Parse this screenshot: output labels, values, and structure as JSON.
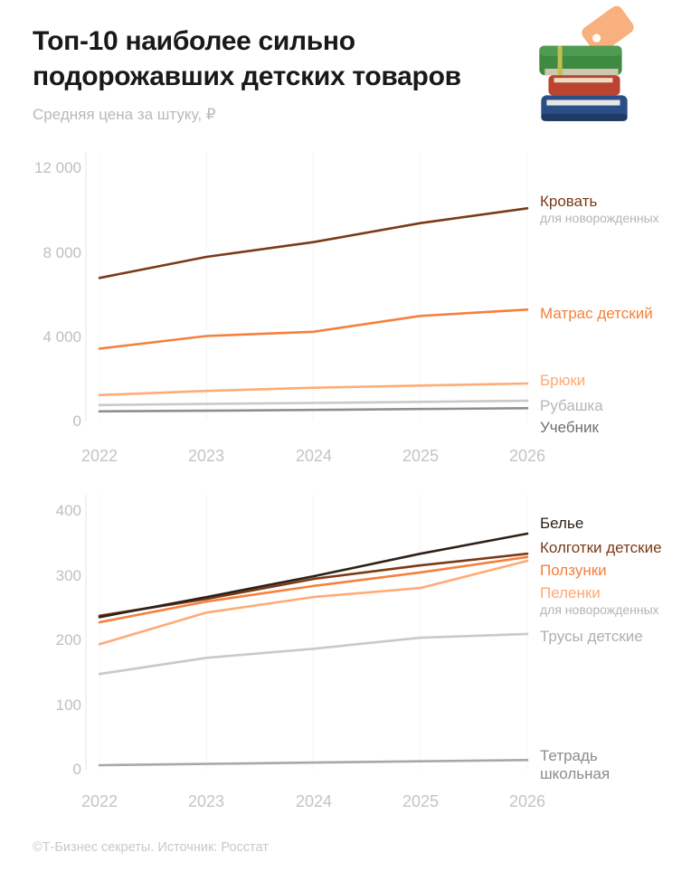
{
  "header": {
    "title_line1": "Топ-10 наиболее сильно",
    "title_line2": "подорожавших детских товаров",
    "subtitle": "Средняя цена за штуку, ₽",
    "illustration": "books-with-price-tag"
  },
  "footer": {
    "credit": "©Т-Бизнес секреты. Источник: Росстат"
  },
  "colors": {
    "title_text": "#191919",
    "axis_text": "#BFBFBF",
    "muted_text": "#B5B5B5",
    "footer_text": "#C9C9C9",
    "axis_line": "#E6E6E6",
    "grid_line": "#F4F4F4"
  },
  "chart_data": [
    {
      "type": "line",
      "title": "Средняя цена за штуку, ₽",
      "categories": [
        "2022",
        "2023",
        "2024",
        "2025",
        "2026"
      ],
      "xlabel": "",
      "ylabel": "",
      "ylim": [
        0,
        12000
      ],
      "grid": "vertical",
      "legend_position": "right",
      "y_ticks": [
        {
          "value": 12000,
          "label": "12 000"
        },
        {
          "value": 8000,
          "label": "8 000"
        },
        {
          "value": 4000,
          "label": "4 000"
        },
        {
          "value": 0,
          "label": "0"
        }
      ],
      "series": [
        {
          "name": "Кровать",
          "sublabel": "для новорожденных",
          "color": "#7B3A17",
          "label_color": "#7B3A17",
          "values": [
            6800,
            7800,
            8500,
            9400,
            10100
          ]
        },
        {
          "name": "Матрас детский",
          "color": "#F5803C",
          "label_color": "#F5803C",
          "values": [
            3450,
            4050,
            4250,
            5000,
            5300
          ]
        },
        {
          "name": "Брюки",
          "color": "#FFAB76",
          "label_color": "#FFA873",
          "values": [
            1250,
            1450,
            1600,
            1700,
            1800
          ]
        },
        {
          "name": "Рубашка",
          "color": "#C9C9C9",
          "label_color": "#B6B6B6",
          "values": [
            780,
            830,
            880,
            930,
            980
          ]
        },
        {
          "name": "Учебник",
          "color": "#8E8E8E",
          "label_color": "#6F6F6F",
          "values": [
            480,
            510,
            550,
            590,
            630
          ]
        }
      ]
    },
    {
      "type": "line",
      "title": "",
      "categories": [
        "2022",
        "2023",
        "2024",
        "2025",
        "2026"
      ],
      "xlabel": "",
      "ylabel": "",
      "ylim": [
        0,
        400
      ],
      "grid": "vertical",
      "legend_position": "right",
      "y_ticks": [
        {
          "value": 400,
          "label": "400"
        },
        {
          "value": 300,
          "label": "300"
        },
        {
          "value": 200,
          "label": "200"
        },
        {
          "value": 100,
          "label": "100"
        },
        {
          "value": 0,
          "label": "0"
        }
      ],
      "series": [
        {
          "name": "Белье",
          "color": "#2E2118",
          "label_color": "#2A1F17",
          "values": [
            236,
            267,
            299,
            334,
            365
          ]
        },
        {
          "name": "Колготки детские",
          "color": "#7B3A17",
          "label_color": "#7B3A17",
          "values": [
            238,
            264,
            295,
            316,
            334
          ]
        },
        {
          "name": "Ползунки",
          "color": "#F5803C",
          "label_color": "#F5803C",
          "values": [
            228,
            260,
            284,
            305,
            329
          ]
        },
        {
          "name": "Пеленки",
          "sublabel": "для новорожденных",
          "color": "#FFAB76",
          "label_color": "#FFA873",
          "values": [
            194,
            243,
            267,
            281,
            323
          ]
        },
        {
          "name": "Трусы детские",
          "color": "#C9C9C9",
          "label_color": "#AFAFAF",
          "values": [
            148,
            173,
            187,
            204,
            210
          ]
        },
        {
          "name": "Тетрадь школьная",
          "color": "#A8A8A8",
          "label_color": "#8C8C8C",
          "values": [
            7,
            9,
            11,
            13,
            15
          ]
        }
      ]
    }
  ]
}
